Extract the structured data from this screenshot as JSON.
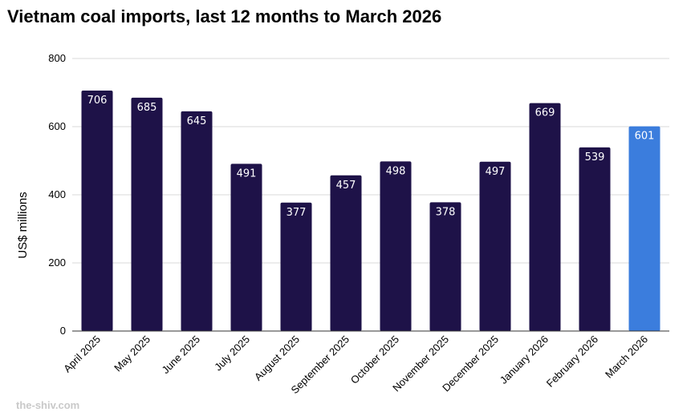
{
  "chart_data": {
    "type": "bar",
    "title": "Vietnam coal imports, last 12 months to March 2026",
    "xlabel": "",
    "ylabel": "US$ millions",
    "ylim": [
      0,
      800
    ],
    "yticks": [
      0,
      200,
      400,
      600,
      800
    ],
    "grid": true,
    "categories": [
      "April 2025",
      "May 2025",
      "June 2025",
      "July 2025",
      "August 2025",
      "September 2025",
      "October 2025",
      "November 2025",
      "December 2025",
      "January 2026",
      "February 2026",
      "March 2026"
    ],
    "values": [
      706,
      685,
      645,
      491,
      377,
      457,
      498,
      378,
      497,
      669,
      539,
      601
    ],
    "colors": {
      "default": "#1e1248",
      "highlight": "#3b7ddd"
    },
    "highlight_index": 11
  },
  "footer": {
    "source": "the-shiv.com"
  }
}
